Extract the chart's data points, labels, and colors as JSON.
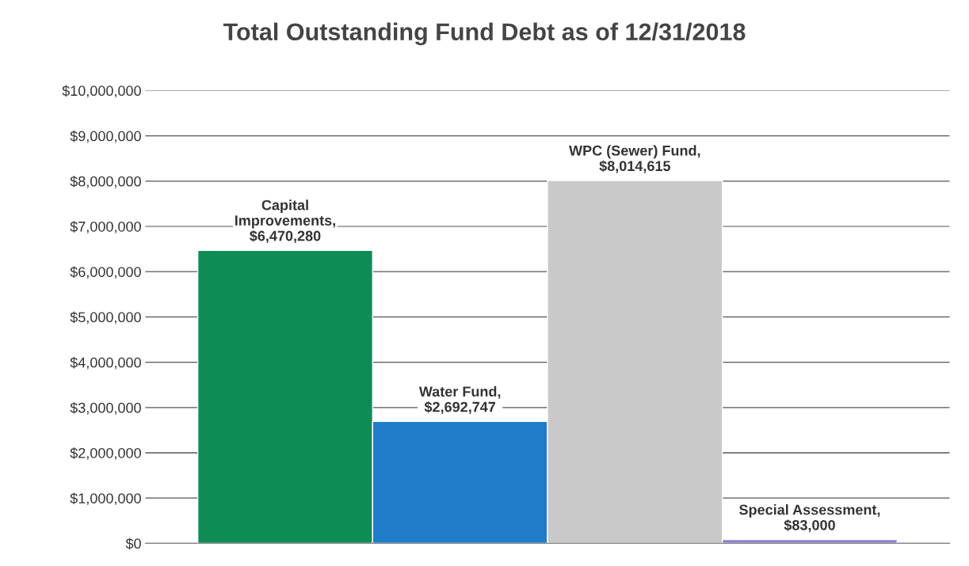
{
  "chart_data": {
    "type": "bar",
    "title": "Total Outstanding Fund Debt as of 12/31/2018",
    "categories": [
      null,
      null,
      null,
      null
    ],
    "values": [
      6470280,
      2692747,
      8014615,
      83000
    ],
    "colors": [
      "#0e8c55",
      "#1f7cc9",
      "#c9c9c9",
      "#8c80d4"
    ],
    "value_labels": [
      "Capital\nImprovements,\n$6,470,280",
      "Water Fund,\n$2,692,747",
      "WPC (Sewer) Fund,\n$8,014,615",
      "Special Assessment,\n$83,000"
    ],
    "ylim": [
      0,
      10000000
    ],
    "yticks": [
      {
        "value": 0,
        "label": "$0"
      },
      {
        "value": 1000000,
        "label": "$1,000,000"
      },
      {
        "value": 2000000,
        "label": "$2,000,000"
      },
      {
        "value": 3000000,
        "label": "$3,000,000"
      },
      {
        "value": 4000000,
        "label": "$4,000,000"
      },
      {
        "value": 5000000,
        "label": "$5,000,000"
      },
      {
        "value": 6000000,
        "label": "$6,000,000"
      },
      {
        "value": 7000000,
        "label": "$7,000,000"
      },
      {
        "value": 8000000,
        "label": "$8,000,000"
      },
      {
        "value": 9000000,
        "label": "$9,000,000"
      },
      {
        "value": 10000000,
        "label": "$10,000,000"
      }
    ],
    "grid": "y",
    "tick_labels": "y",
    "legend": false
  }
}
